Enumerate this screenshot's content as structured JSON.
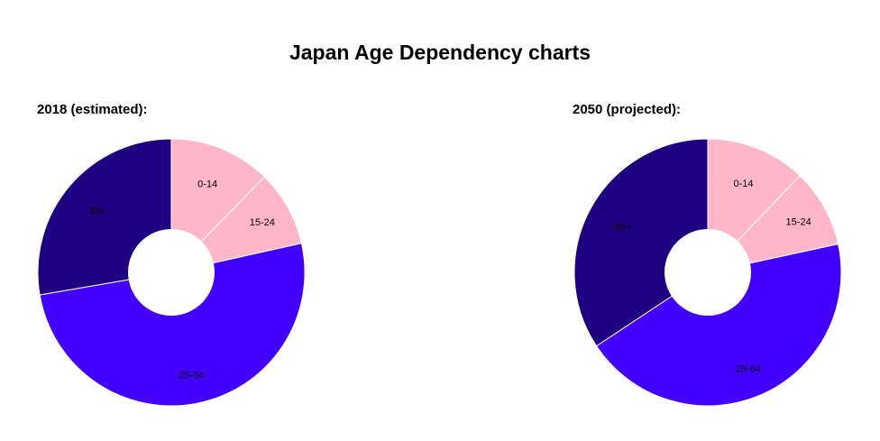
{
  "page": {
    "title": "Japan Age Dependency charts"
  },
  "colors": {
    "0-14": "#ffb6c8",
    "15-24": "#ffb6c8",
    "25-64": "#4400ff",
    "65+": "#1e0080",
    "separator": "#ffffff"
  },
  "chart_data": [
    {
      "type": "pie",
      "title": "2018 (estimated):",
      "donut": true,
      "categories": [
        "0-14",
        "15-24",
        "25-64",
        "65+"
      ],
      "values": [
        12.3,
        9.2,
        50.8,
        27.7
      ]
    },
    {
      "type": "pie",
      "title": "2050 (projected):",
      "donut": true,
      "categories": [
        "0-14",
        "15-24",
        "25-64",
        "65+"
      ],
      "values": [
        12.1,
        9.5,
        44.1,
        34.3
      ]
    }
  ]
}
